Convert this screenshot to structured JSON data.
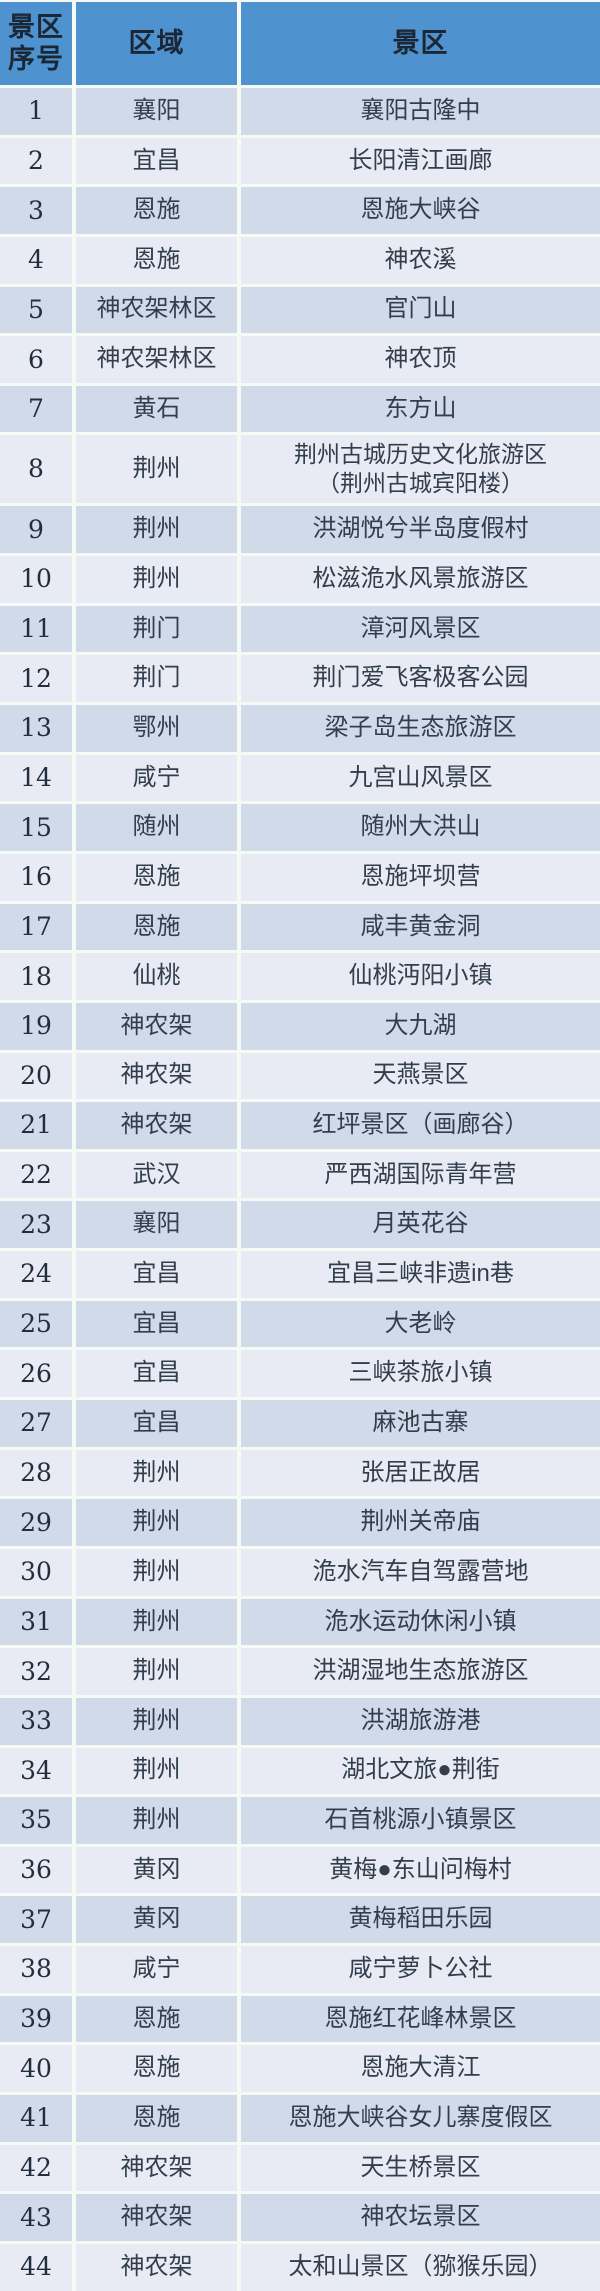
{
  "colors": {
    "header_bg": "#4E93D0",
    "header_text": "#1c2735",
    "row_odd": "#D0DAE8",
    "row_even": "#E9EBF4",
    "line": "#F6FAF5",
    "body_text": "#333e4c"
  },
  "table": {
    "headers": [
      {
        "label": "景区序号"
      },
      {
        "label": "区域"
      },
      {
        "label": "景区"
      }
    ],
    "rows": [
      {
        "no": "1",
        "region": "襄阳",
        "scenic": "襄阳古隆中"
      },
      {
        "no": "2",
        "region": "宜昌",
        "scenic": "长阳清江画廊"
      },
      {
        "no": "3",
        "region": "恩施",
        "scenic": "恩施大峡谷"
      },
      {
        "no": "4",
        "region": "恩施",
        "scenic": "神农溪"
      },
      {
        "no": "5",
        "region": "神农架林区",
        "scenic": "官门山"
      },
      {
        "no": "6",
        "region": "神农架林区",
        "scenic": "神农顶"
      },
      {
        "no": "7",
        "region": "黄石",
        "scenic": "东方山"
      },
      {
        "no": "8",
        "region": "荆州",
        "scenic": "荆州古城历史文化旅游区\n（荆州古城宾阳楼）"
      },
      {
        "no": "9",
        "region": "荆州",
        "scenic": "洪湖悦兮半岛度假村"
      },
      {
        "no": "10",
        "region": "荆州",
        "scenic": "松滋洈水风景旅游区"
      },
      {
        "no": "11",
        "region": "荆门",
        "scenic": "漳河风景区"
      },
      {
        "no": "12",
        "region": "荆门",
        "scenic": "荆门爱飞客极客公园"
      },
      {
        "no": "13",
        "region": "鄂州",
        "scenic": "梁子岛生态旅游区"
      },
      {
        "no": "14",
        "region": "咸宁",
        "scenic": "九宫山风景区"
      },
      {
        "no": "15",
        "region": "随州",
        "scenic": "随州大洪山"
      },
      {
        "no": "16",
        "region": "恩施",
        "scenic": "恩施坪坝营"
      },
      {
        "no": "17",
        "region": "恩施",
        "scenic": "咸丰黄金洞"
      },
      {
        "no": "18",
        "region": "仙桃",
        "scenic": "仙桃沔阳小镇"
      },
      {
        "no": "19",
        "region": "神农架",
        "scenic": "大九湖"
      },
      {
        "no": "20",
        "region": "神农架",
        "scenic": "天燕景区"
      },
      {
        "no": "21",
        "region": "神农架",
        "scenic": "红坪景区（画廊谷）"
      },
      {
        "no": "22",
        "region": "武汉",
        "scenic": "严西湖国际青年营"
      },
      {
        "no": "23",
        "region": "襄阳",
        "scenic": "月英花谷"
      },
      {
        "no": "24",
        "region": "宜昌",
        "scenic": "宜昌三峡非遗in巷"
      },
      {
        "no": "25",
        "region": "宜昌",
        "scenic": "大老岭"
      },
      {
        "no": "26",
        "region": "宜昌",
        "scenic": "三峡茶旅小镇"
      },
      {
        "no": "27",
        "region": "宜昌",
        "scenic": "麻池古寨"
      },
      {
        "no": "28",
        "region": "荆州",
        "scenic": "张居正故居"
      },
      {
        "no": "29",
        "region": "荆州",
        "scenic": "荆州关帝庙"
      },
      {
        "no": "30",
        "region": "荆州",
        "scenic": "洈水汽车自驾露营地"
      },
      {
        "no": "31",
        "region": "荆州",
        "scenic": "洈水运动休闲小镇"
      },
      {
        "no": "32",
        "region": "荆州",
        "scenic": "洪湖湿地生态旅游区"
      },
      {
        "no": "33",
        "region": "荆州",
        "scenic": "洪湖旅游港"
      },
      {
        "no": "34",
        "region": "荆州",
        "scenic": "湖北文旅●荆街"
      },
      {
        "no": "35",
        "region": "荆州",
        "scenic": "石首桃源小镇景区"
      },
      {
        "no": "36",
        "region": "黄冈",
        "scenic": "黄梅●东山问梅村"
      },
      {
        "no": "37",
        "region": "黄冈",
        "scenic": "黄梅稻田乐园"
      },
      {
        "no": "38",
        "region": "咸宁",
        "scenic": "咸宁萝卜公社"
      },
      {
        "no": "39",
        "region": "恩施",
        "scenic": "恩施红花峰林景区"
      },
      {
        "no": "40",
        "region": "恩施",
        "scenic": "恩施大清江"
      },
      {
        "no": "41",
        "region": "恩施",
        "scenic": "恩施大峡谷女儿寨度假区"
      },
      {
        "no": "42",
        "region": "神农架",
        "scenic": "天生桥景区"
      },
      {
        "no": "43",
        "region": "神农架",
        "scenic": "神农坛景区"
      },
      {
        "no": "44",
        "region": "神农架",
        "scenic": "太和山景区（猕猴乐园）"
      }
    ]
  }
}
